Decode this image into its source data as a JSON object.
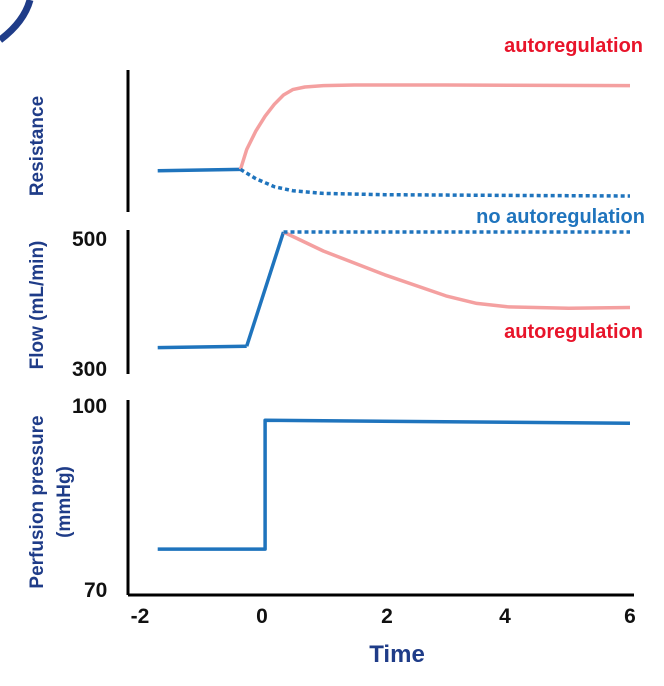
{
  "chart_data": {
    "type": "line",
    "xlabel": "Time",
    "x_ticks": [
      "-2",
      "0",
      "2",
      "4",
      "6"
    ],
    "xlim": [
      -2,
      6
    ],
    "colors": {
      "axis_label": "#1f3c88",
      "autoregulation": "#f4a0a0",
      "no_autoregulation": "#1f74bd",
      "annotation_red": "#e8142a",
      "annotation_blue": "#1f74bd"
    },
    "panels": [
      {
        "id": "resistance",
        "ylabel": "Resistance",
        "ylim": [
          0,
          100
        ],
        "y_ticks": [],
        "series": [
          {
            "id": "baseline",
            "style": "solid",
            "color": "#1f74bd",
            "x": [
              -1.7,
              -0.35
            ],
            "y": [
              28,
              29
            ]
          },
          {
            "id": "auto",
            "name": "autoregulation",
            "style": "solid",
            "color": "#f4a0a0",
            "x": [
              -0.35,
              -0.25,
              -0.1,
              0.05,
              0.2,
              0.35,
              0.5,
              0.7,
              1.0,
              1.5,
              3.0,
              6.0
            ],
            "y": [
              29,
              44,
              58,
              69,
              78,
              85,
              89,
              91,
              92,
              92.5,
              92.5,
              92
            ]
          },
          {
            "id": "noauto",
            "name": "no autoregulation",
            "style": "dotted",
            "color": "#1f74bd",
            "x": [
              -0.35,
              -0.1,
              0.2,
              0.5,
              1.0,
              2.0,
              4.0,
              6.0
            ],
            "y": [
              29,
              22,
              16,
              13,
              11,
              10,
              9.5,
              9
            ]
          }
        ]
      },
      {
        "id": "flow",
        "ylabel": "Flow (mL/min)",
        "ylim": [
          300,
          500
        ],
        "y_ticks": [
          300,
          500
        ],
        "series": [
          {
            "id": "baseline",
            "style": "solid",
            "color": "#1f74bd",
            "x": [
              -1.7,
              -0.25
            ],
            "y": [
              330,
              332
            ]
          },
          {
            "id": "rise",
            "style": "solid",
            "color": "#1f74bd",
            "x": [
              -0.25,
              0.35
            ],
            "y": [
              332,
              500
            ]
          },
          {
            "id": "auto",
            "name": "autoregulation",
            "style": "solid",
            "color": "#f4a0a0",
            "x": [
              0.35,
              1.0,
              2.0,
              3.0,
              3.5,
              4.0,
              5.0,
              6.0
            ],
            "y": [
              500,
              472,
              437,
              406,
              395,
              390,
              388,
              389
            ]
          },
          {
            "id": "noauto",
            "name": "no autoregulation",
            "style": "dotted",
            "color": "#1f74bd",
            "x": [
              0.35,
              6.0
            ],
            "y": [
              500,
              500
            ]
          }
        ]
      },
      {
        "id": "pressure",
        "ylabel": "Perfusion pressure (mmHg)",
        "ylabel_lines": [
          "Perfusion pressure",
          "(mmHg)"
        ],
        "ylim": [
          70,
          100
        ],
        "y_ticks": [
          70,
          100
        ],
        "series": [
          {
            "id": "pressure",
            "style": "solid",
            "color": "#1f74bd",
            "x": [
              -1.7,
              0.05,
              0.05,
              6.0
            ],
            "y": [
              77,
              77,
              98,
              97.5
            ]
          }
        ]
      }
    ],
    "annotations": [
      {
        "id": "anno-auto-top",
        "text": "autoregulation",
        "color": "#e8142a"
      },
      {
        "id": "anno-noauto",
        "text": "no autoregulation",
        "color": "#1f74bd"
      },
      {
        "id": "anno-auto-mid",
        "text": "autoregulation",
        "color": "#e8142a"
      }
    ]
  }
}
